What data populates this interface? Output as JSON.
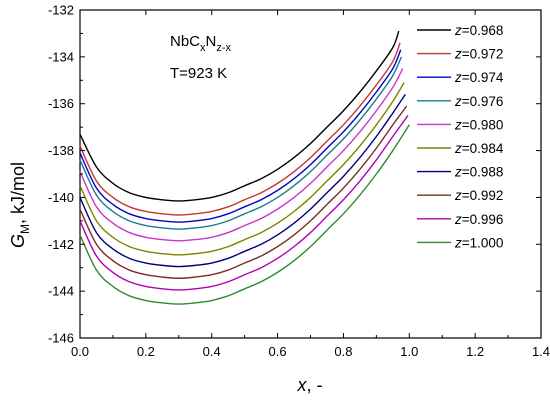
{
  "chart_data": {
    "type": "line",
    "xlabel": "x, -",
    "ylabel": "G_M, kJ/mol",
    "xlim": [
      0.0,
      1.4
    ],
    "ylim": [
      -146,
      -132
    ],
    "x_ticks": [
      "0.0",
      "0.2",
      "0.4",
      "0.6",
      "0.8",
      "1.0",
      "1.2",
      "1.4"
    ],
    "y_ticks": [
      "-146",
      "-144",
      "-142",
      "-140",
      "-138",
      "-136",
      "-134",
      "-132"
    ],
    "grid": false,
    "legend_position": "top-right",
    "annotations": {
      "formula_base": "NbC",
      "formula_sub1": "x",
      "formula_mid": "N",
      "formula_sub2": "z-x",
      "temperature": "T=923 K"
    },
    "series": [
      {
        "name": "z=0.968",
        "z": "0.968",
        "color": "#000000",
        "x": [
          0.0,
          0.05,
          0.1,
          0.15,
          0.2,
          0.25,
          0.3,
          0.35,
          0.4,
          0.45,
          0.5,
          0.55,
          0.6,
          0.65,
          0.7,
          0.75,
          0.8,
          0.85,
          0.9,
          0.95,
          0.968
        ],
        "y": [
          -137.3,
          -138.7,
          -139.4,
          -139.8,
          -140.0,
          -140.1,
          -140.15,
          -140.1,
          -140.0,
          -139.8,
          -139.5,
          -139.2,
          -138.8,
          -138.3,
          -137.7,
          -137.0,
          -136.3,
          -135.5,
          -134.6,
          -133.6,
          -132.9
        ]
      },
      {
        "name": "z=0.972",
        "z": "0.972",
        "color": "#c0392b",
        "x": [
          0.0,
          0.05,
          0.1,
          0.15,
          0.2,
          0.25,
          0.3,
          0.35,
          0.4,
          0.45,
          0.5,
          0.55,
          0.6,
          0.65,
          0.7,
          0.75,
          0.8,
          0.85,
          0.9,
          0.95,
          0.972
        ],
        "y": [
          -137.8,
          -139.3,
          -140.0,
          -140.4,
          -140.6,
          -140.7,
          -140.75,
          -140.7,
          -140.6,
          -140.4,
          -140.1,
          -139.8,
          -139.4,
          -138.9,
          -138.3,
          -137.6,
          -136.9,
          -136.1,
          -135.2,
          -134.2,
          -133.4
        ]
      },
      {
        "name": "z=0.974",
        "z": "0.974",
        "color": "#0000cc",
        "x": [
          0.0,
          0.05,
          0.1,
          0.15,
          0.2,
          0.25,
          0.3,
          0.35,
          0.4,
          0.45,
          0.5,
          0.55,
          0.6,
          0.65,
          0.7,
          0.75,
          0.8,
          0.85,
          0.9,
          0.95,
          0.974
        ],
        "y": [
          -138.1,
          -139.6,
          -140.3,
          -140.7,
          -140.9,
          -141.0,
          -141.05,
          -141.0,
          -140.9,
          -140.7,
          -140.4,
          -140.1,
          -139.7,
          -139.2,
          -138.6,
          -137.9,
          -137.2,
          -136.4,
          -135.5,
          -134.5,
          -133.7
        ]
      },
      {
        "name": "z=0.976",
        "z": "0.976",
        "color": "#1a7a8c",
        "x": [
          0.0,
          0.05,
          0.1,
          0.15,
          0.2,
          0.25,
          0.3,
          0.35,
          0.4,
          0.45,
          0.5,
          0.55,
          0.6,
          0.65,
          0.7,
          0.75,
          0.8,
          0.85,
          0.9,
          0.95,
          0.976
        ],
        "y": [
          -138.4,
          -139.9,
          -140.6,
          -141.0,
          -141.2,
          -141.3,
          -141.35,
          -141.3,
          -141.2,
          -141.0,
          -140.7,
          -140.4,
          -140.0,
          -139.5,
          -138.9,
          -138.2,
          -137.5,
          -136.7,
          -135.8,
          -134.8,
          -134.0
        ]
      },
      {
        "name": "z=0.980",
        "z": "0.980",
        "color": "#cc33cc",
        "x": [
          0.0,
          0.05,
          0.1,
          0.15,
          0.2,
          0.25,
          0.3,
          0.35,
          0.4,
          0.45,
          0.5,
          0.55,
          0.6,
          0.65,
          0.7,
          0.75,
          0.8,
          0.85,
          0.9,
          0.95,
          0.98
        ],
        "y": [
          -138.9,
          -140.4,
          -141.1,
          -141.5,
          -141.7,
          -141.8,
          -141.85,
          -141.8,
          -141.7,
          -141.5,
          -141.2,
          -140.9,
          -140.5,
          -140.0,
          -139.4,
          -138.7,
          -138.0,
          -137.2,
          -136.3,
          -135.3,
          -134.5
        ]
      },
      {
        "name": "z=0.984",
        "z": "0.984",
        "color": "#808000",
        "x": [
          0.0,
          0.05,
          0.1,
          0.15,
          0.2,
          0.25,
          0.3,
          0.35,
          0.4,
          0.45,
          0.5,
          0.55,
          0.6,
          0.65,
          0.7,
          0.75,
          0.8,
          0.85,
          0.9,
          0.95,
          0.984
        ],
        "y": [
          -139.5,
          -141.0,
          -141.7,
          -142.1,
          -142.3,
          -142.4,
          -142.45,
          -142.4,
          -142.3,
          -142.1,
          -141.8,
          -141.5,
          -141.1,
          -140.6,
          -140.0,
          -139.3,
          -138.6,
          -137.8,
          -136.9,
          -135.9,
          -135.1
        ]
      },
      {
        "name": "z=0.988",
        "z": "0.988",
        "color": "#000080",
        "x": [
          0.0,
          0.05,
          0.1,
          0.15,
          0.2,
          0.25,
          0.3,
          0.35,
          0.4,
          0.45,
          0.5,
          0.55,
          0.6,
          0.65,
          0.7,
          0.75,
          0.8,
          0.85,
          0.9,
          0.95,
          0.988
        ],
        "y": [
          -140.0,
          -141.5,
          -142.2,
          -142.6,
          -142.8,
          -142.9,
          -142.95,
          -142.9,
          -142.8,
          -142.6,
          -142.3,
          -142.0,
          -141.6,
          -141.1,
          -140.5,
          -139.8,
          -139.1,
          -138.3,
          -137.4,
          -136.4,
          -135.6
        ]
      },
      {
        "name": "z=0.992",
        "z": "0.992",
        "color": "#7b2d26",
        "x": [
          0.0,
          0.05,
          0.1,
          0.15,
          0.2,
          0.25,
          0.3,
          0.35,
          0.4,
          0.45,
          0.5,
          0.55,
          0.6,
          0.65,
          0.7,
          0.75,
          0.8,
          0.85,
          0.9,
          0.95,
          0.992
        ],
        "y": [
          -140.5,
          -142.0,
          -142.7,
          -143.1,
          -143.3,
          -143.4,
          -143.45,
          -143.4,
          -143.3,
          -143.1,
          -142.8,
          -142.5,
          -142.1,
          -141.6,
          -141.0,
          -140.3,
          -139.6,
          -138.8,
          -137.9,
          -136.9,
          -136.1
        ]
      },
      {
        "name": "z=0.996",
        "z": "0.996",
        "color": "#b300b3",
        "x": [
          0.0,
          0.05,
          0.1,
          0.15,
          0.2,
          0.25,
          0.3,
          0.35,
          0.4,
          0.45,
          0.5,
          0.55,
          0.6,
          0.65,
          0.7,
          0.75,
          0.8,
          0.85,
          0.9,
          0.95,
          0.996
        ],
        "y": [
          -141.0,
          -142.5,
          -143.2,
          -143.6,
          -143.8,
          -143.9,
          -143.95,
          -143.9,
          -143.8,
          -143.6,
          -143.3,
          -143.0,
          -142.6,
          -142.1,
          -141.5,
          -140.8,
          -140.1,
          -139.3,
          -138.4,
          -137.4,
          -136.5
        ]
      },
      {
        "name": "z=1.000",
        "z": "1.000",
        "color": "#2e8b2e",
        "x": [
          0.0,
          0.05,
          0.1,
          0.15,
          0.2,
          0.25,
          0.3,
          0.35,
          0.4,
          0.45,
          0.5,
          0.55,
          0.6,
          0.65,
          0.7,
          0.75,
          0.8,
          0.85,
          0.9,
          0.95,
          1.0
        ],
        "y": [
          -141.6,
          -143.1,
          -143.8,
          -144.2,
          -144.4,
          -144.5,
          -144.55,
          -144.5,
          -144.4,
          -144.2,
          -143.9,
          -143.6,
          -143.2,
          -142.7,
          -142.1,
          -141.4,
          -140.7,
          -139.9,
          -139.0,
          -138.0,
          -136.9
        ]
      }
    ]
  }
}
